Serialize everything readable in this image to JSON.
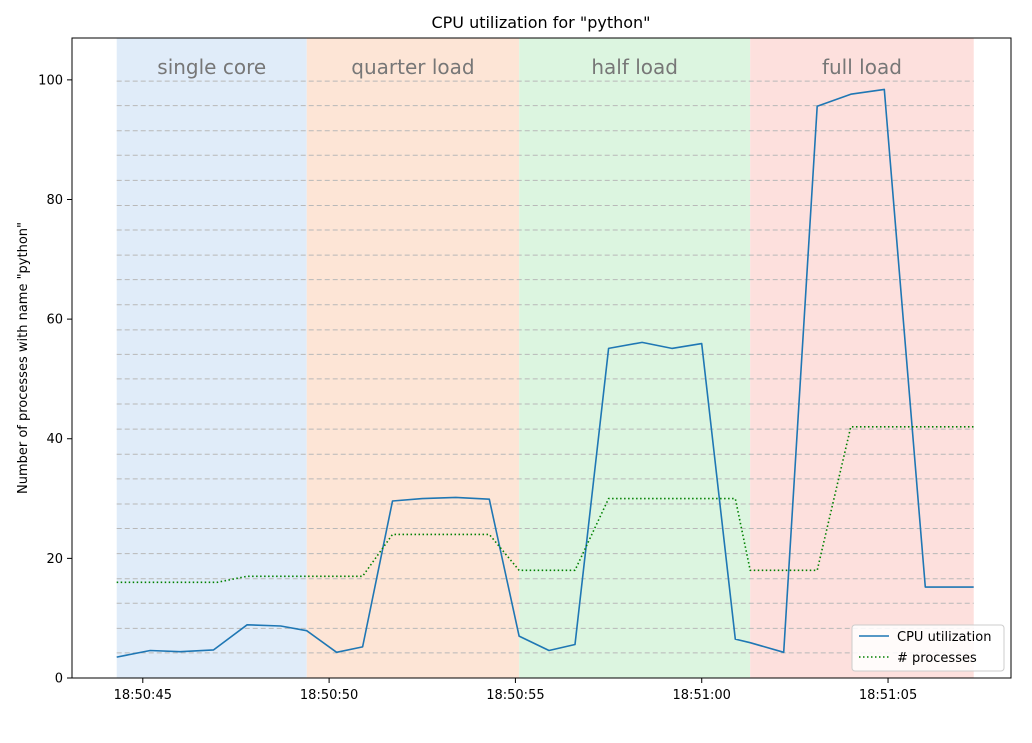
{
  "chart_data": {
    "type": "line",
    "title": "CPU utilization for \"python\"",
    "xlabel": "",
    "ylabel": "Number of processes with name \"python\"",
    "xlim": [
      "18:50:43.1",
      "18:51:08.3"
    ],
    "ylim": [
      0,
      107
    ],
    "x_ticks": [
      "18:50:45",
      "18:50:50",
      "18:50:55",
      "18:51:00",
      "18:51:05"
    ],
    "y_ticks": [
      0,
      20,
      40,
      60,
      80,
      100
    ],
    "regions": [
      {
        "label": "single core",
        "start": "18:50:44.3",
        "end": "18:50:49.4",
        "color": "#e0ecf9"
      },
      {
        "label": "quarter load",
        "start": "18:50:49.4",
        "end": "18:50:55.1",
        "color": "#fde5d6"
      },
      {
        "label": "half load",
        "start": "18:50:55.1",
        "end": "18:51:01.3",
        "color": "#dcf5e0"
      },
      {
        "label": "full load",
        "start": "18:51:01.3",
        "end": "18:51:07.3",
        "color": "#fde0dd"
      }
    ],
    "threshold_lines": [
      4.2,
      8.3,
      12.5,
      16.6,
      20.8,
      25,
      29.1,
      33.3,
      37.4,
      41.6,
      45.8,
      50,
      54.1,
      58.2,
      62.4,
      66.6,
      70.7,
      74.9,
      79,
      83.2,
      87.4,
      91.5,
      95.7,
      99.8
    ],
    "grid": "dashed horizontal lines",
    "legend_position": "bottom-right",
    "series": [
      {
        "name": "CPU utilization",
        "color": "#1f77b4",
        "style": "solid",
        "x": [
          "18:50:44.3",
          "18:50:45.2",
          "18:50:46.0",
          "18:50:46.9",
          "18:50:47.8",
          "18:50:48.7",
          "18:50:49.4",
          "18:50:50.2",
          "18:50:50.9",
          "18:50:51.7",
          "18:50:52.5",
          "18:50:53.4",
          "18:50:54.3",
          "18:50:55.1",
          "18:50:55.9",
          "18:50:56.6",
          "18:50:57.5",
          "18:50:58.4",
          "18:50:59.2",
          "18:51:00.0",
          "18:51:00.9",
          "18:51:01.3",
          "18:51:02.2",
          "18:51:03.1",
          "18:51:04.0",
          "18:51:04.9",
          "18:51:06.0",
          "18:51:07.3"
        ],
        "values": [
          3.5,
          4.6,
          4.4,
          4.7,
          8.9,
          8.7,
          7.9,
          4.3,
          5.2,
          29.6,
          30.0,
          30.2,
          29.9,
          7.0,
          4.6,
          5.6,
          55.1,
          56.1,
          55.1,
          55.9,
          6.5,
          5.9,
          4.3,
          95.6,
          97.6,
          98.4,
          15.2,
          15.2
        ]
      },
      {
        "name": "# processes",
        "color": "#008000",
        "style": "dotted",
        "x": [
          "18:50:44.3",
          "18:50:47.0",
          "18:50:47.8",
          "18:50:50.9",
          "18:50:51.7",
          "18:50:54.3",
          "18:50:55.1",
          "18:50:56.6",
          "18:50:57.5",
          "18:51:00.9",
          "18:51:01.3",
          "18:51:03.1",
          "18:51:04.0",
          "18:51:07.3"
        ],
        "values": [
          16,
          16,
          17,
          17,
          24,
          24,
          18,
          18,
          30,
          30,
          18,
          18,
          42,
          42
        ]
      }
    ]
  }
}
